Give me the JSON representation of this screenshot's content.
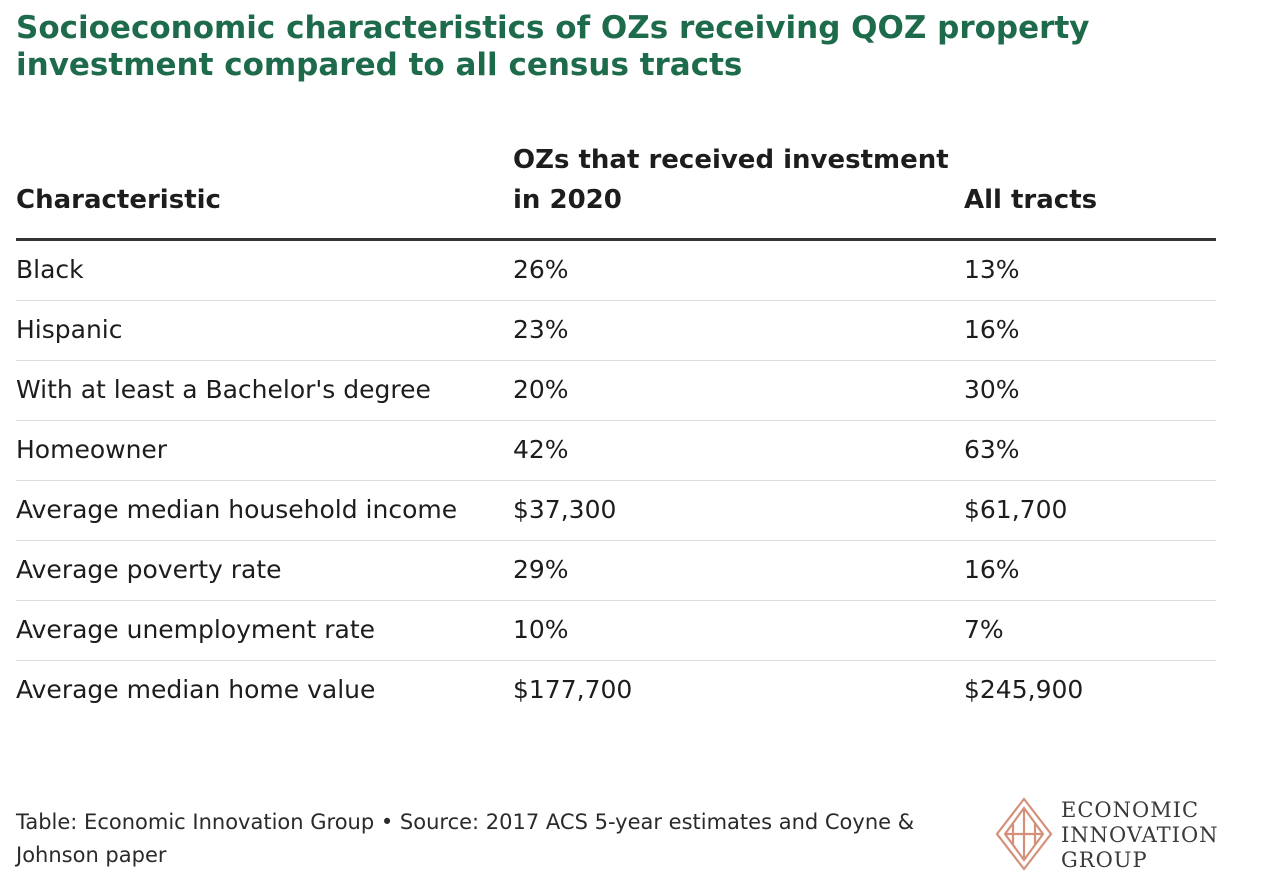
{
  "title": "Socioeconomic characteristics of OZs receiving QOZ property investment compared to all census tracts",
  "colors": {
    "title": "#1d6b4b",
    "logo_accent": "#d4917a"
  },
  "chart_data": {
    "type": "table",
    "title": "Socioeconomic characteristics of OZs receiving QOZ property investment compared to all census tracts",
    "columns": [
      "Characteristic",
      "OZs that received investment in 2020",
      "All tracts"
    ],
    "rows": [
      [
        "Black",
        "26%",
        "13%"
      ],
      [
        "Hispanic",
        "23%",
        "16%"
      ],
      [
        "With at least a Bachelor's degree",
        "20%",
        "30%"
      ],
      [
        "Homeowner",
        "42%",
        "63%"
      ],
      [
        "Average median household income",
        "$37,300",
        "$61,700"
      ],
      [
        "Average poverty rate",
        "29%",
        "16%"
      ],
      [
        "Average unemployment rate",
        "10%",
        "7%"
      ],
      [
        "Average median home value",
        "$177,700",
        "$245,900"
      ]
    ]
  },
  "footer": "Table: Economic Innovation Group • Source: 2017 ACS 5-year estimates and Coyne & Johnson paper",
  "logo": {
    "icon": "eig-diamond-logo-icon",
    "lines": [
      "ECONOMIC",
      "INNOVATION",
      "GROUP"
    ]
  }
}
